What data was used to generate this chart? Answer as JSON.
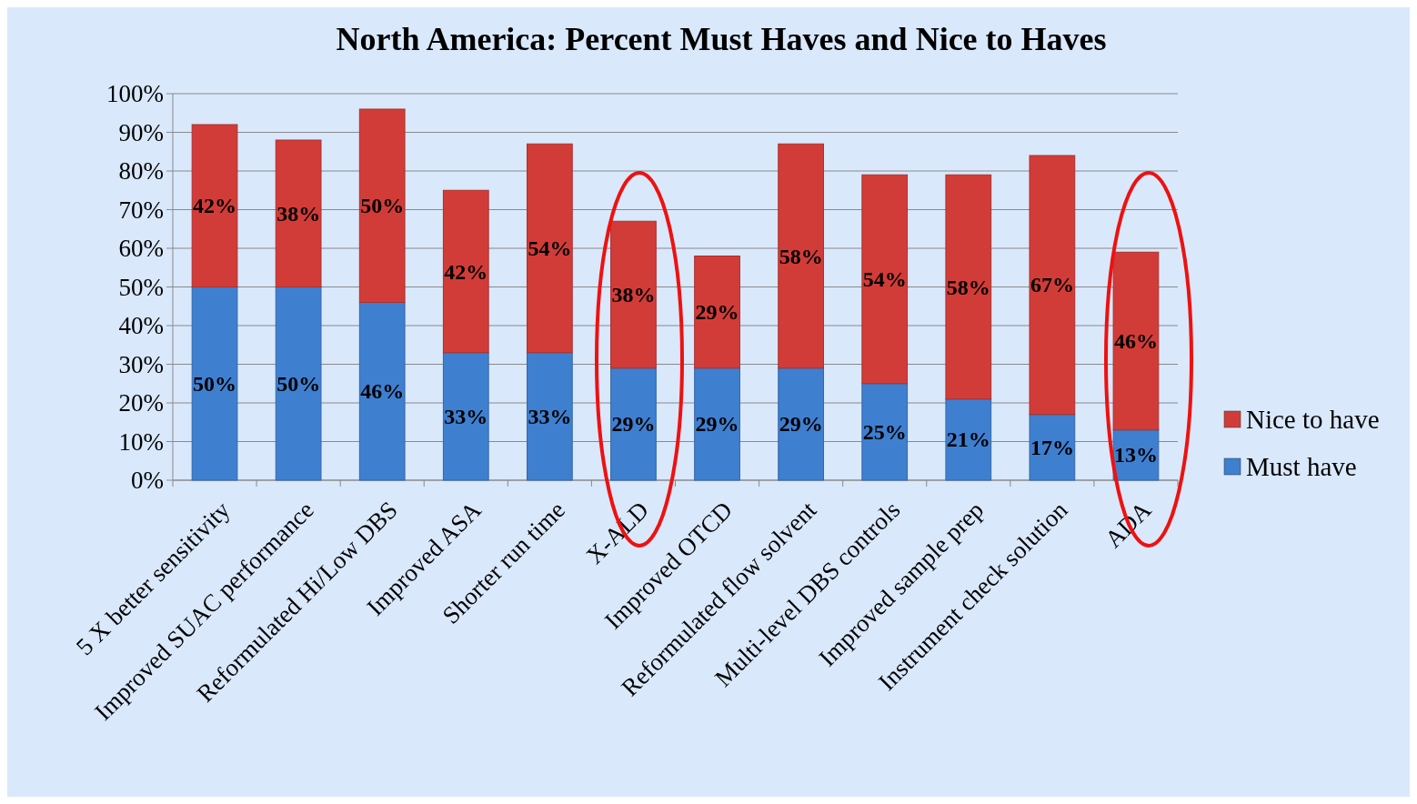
{
  "chart_data": {
    "type": "bar",
    "title": "North America:  Percent Must Haves and Nice to Haves",
    "stacked": true,
    "categories": [
      "5 X better sensitivity",
      "Improved SUAC performance",
      "Reformulated Hi/Low DBS",
      "Improved ASA",
      "Shorter run time",
      "X-ALD",
      "Improved OTCD",
      "Reformulated flow solvent",
      "Multi-level DBS controls",
      "Improved sample prep",
      "Instrument check solution",
      "ADA"
    ],
    "series": [
      {
        "name": "Must have",
        "color": "#3f7fd0",
        "values": [
          50,
          50,
          46,
          33,
          33,
          29,
          29,
          29,
          25,
          21,
          17,
          13
        ]
      },
      {
        "name": "Nice to have",
        "color": "#d23c38",
        "values": [
          42,
          38,
          50,
          42,
          54,
          38,
          29,
          58,
          54,
          58,
          67,
          46
        ]
      }
    ],
    "ylim": [
      0,
      100
    ],
    "yticks": [
      {
        "value": 0,
        "label": "0%"
      },
      {
        "value": 10,
        "label": "10%"
      },
      {
        "value": 20,
        "label": "20%"
      },
      {
        "value": 30,
        "label": "30%"
      },
      {
        "value": 40,
        "label": "40%"
      },
      {
        "value": 50,
        "label": "50%"
      },
      {
        "value": 60,
        "label": "60%"
      },
      {
        "value": 70,
        "label": "70%"
      },
      {
        "value": 80,
        "label": "80%"
      },
      {
        "value": 90,
        "label": "90%"
      },
      {
        "value": 100,
        "label": "100%"
      }
    ],
    "grid": "y",
    "legend": "right",
    "value_labels": [
      [
        "50%",
        "50%",
        "46%",
        "33%",
        "33%",
        "29%",
        "29%",
        "29%",
        "25%",
        "21%",
        "17%",
        "13%"
      ],
      [
        "42%",
        "38%",
        "50%",
        "42%",
        "54%",
        "38%",
        "29%",
        "58%",
        "54%",
        "58%",
        "67%",
        "46%"
      ]
    ]
  }
}
